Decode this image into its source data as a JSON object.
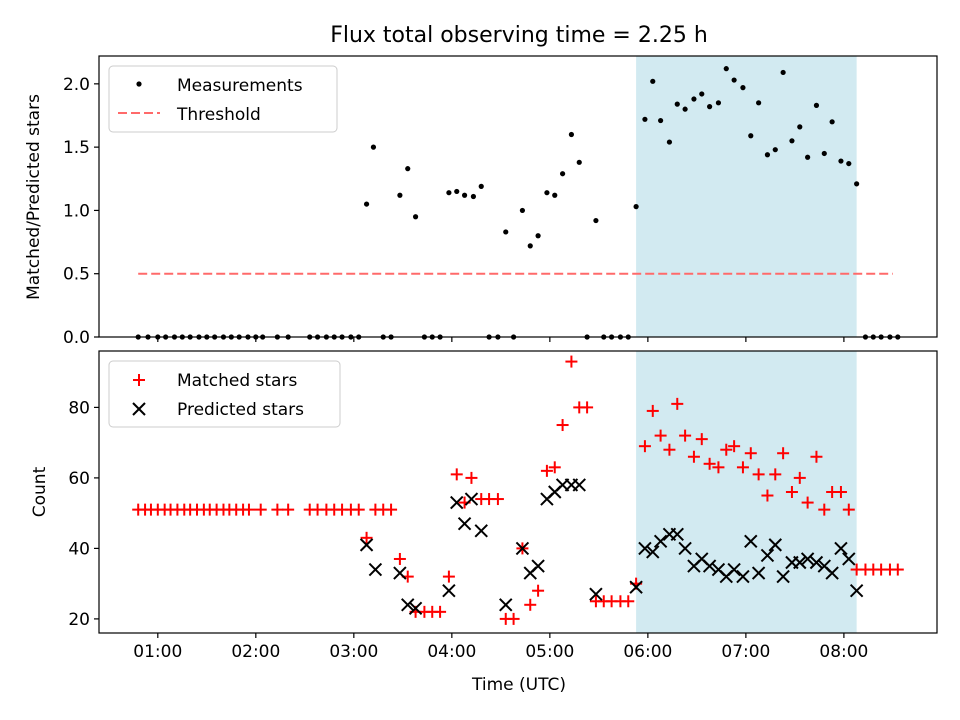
{
  "title": "Flux total observing time = 2.25 h",
  "colors": {
    "background": "#ffffff",
    "highlight": "#add8e6",
    "threshold": "#ff6a6a",
    "matched": "#ff0000",
    "predicted": "#000000",
    "measurement": "#000000"
  },
  "chart_data": [
    {
      "type": "scatter",
      "ylabel": "Matched/Predicted stars",
      "xlim": [
        0.4,
        8.95
      ],
      "ylim": [
        0,
        2.22
      ],
      "yticks": [
        0,
        0.5,
        1.0,
        1.5,
        2.0
      ],
      "ytick_labels": [
        "0.0",
        "0.5",
        "1.0",
        "1.5",
        "2.0"
      ],
      "highlight_span": [
        5.88,
        8.13
      ],
      "threshold": {
        "name": "Threshold",
        "y": 0.5,
        "x_range": [
          0.8,
          8.5
        ]
      },
      "legend": [
        "Measurements",
        "Threshold"
      ],
      "legend_position": "upper-left",
      "series": [
        {
          "name": "Measurements",
          "x": [
            0.8,
            0.9,
            1.0,
            1.08,
            1.17,
            1.25,
            1.33,
            1.42,
            1.5,
            1.58,
            1.67,
            1.75,
            1.83,
            1.92,
            2.0,
            2.07,
            2.22,
            2.33,
            2.55,
            2.63,
            2.72,
            2.8,
            2.88,
            2.97,
            3.05,
            3.13,
            3.2,
            3.3,
            3.38,
            3.47,
            3.55,
            3.63,
            3.72,
            3.8,
            3.88,
            3.97,
            4.05,
            4.13,
            4.22,
            4.3,
            4.38,
            4.47,
            4.55,
            4.63,
            4.72,
            4.8,
            4.88,
            4.97,
            5.05,
            5.13,
            5.22,
            5.3,
            5.38,
            5.47,
            5.55,
            5.63,
            5.72,
            5.8,
            5.88,
            5.97,
            6.05,
            6.13,
            6.22,
            6.3,
            6.38,
            6.47,
            6.55,
            6.63,
            6.72,
            6.8,
            6.88,
            6.97,
            7.05,
            7.13,
            7.22,
            7.3,
            7.38,
            7.47,
            7.55,
            7.63,
            7.72,
            7.8,
            7.88,
            7.97,
            8.05,
            8.13,
            8.22,
            8.3,
            8.38,
            8.47,
            8.55
          ],
          "y": [
            0,
            0,
            0,
            0,
            0,
            0,
            0,
            0,
            0,
            0,
            0,
            0,
            0,
            0,
            0,
            0,
            0,
            0,
            0,
            0,
            0,
            0,
            0,
            0,
            0,
            1.05,
            1.5,
            0,
            0,
            1.12,
            1.33,
            0.95,
            0,
            0,
            0,
            1.14,
            1.15,
            1.12,
            1.11,
            1.19,
            0,
            0,
            0.83,
            0,
            1.0,
            0.72,
            0.8,
            1.14,
            1.12,
            1.29,
            1.6,
            1.38,
            0,
            0.92,
            0,
            0,
            0,
            0,
            1.03,
            1.72,
            2.02,
            1.71,
            1.54,
            1.84,
            1.8,
            1.88,
            1.92,
            1.82,
            1.85,
            2.12,
            2.03,
            1.97,
            1.59,
            1.85,
            1.44,
            1.48,
            2.09,
            1.55,
            1.66,
            1.42,
            1.83,
            1.45,
            1.7,
            1.39,
            1.37,
            1.21,
            0,
            0,
            0,
            0,
            0
          ]
        }
      ]
    },
    {
      "type": "scatter",
      "ylabel": "Count",
      "xlabel": "Time (UTC)",
      "xlim": [
        0.4,
        8.95
      ],
      "ylim": [
        16,
        96
      ],
      "yticks": [
        20,
        40,
        60,
        80
      ],
      "ytick_labels": [
        "20",
        "40",
        "60",
        "80"
      ],
      "xticks": [
        1,
        2,
        3,
        4,
        5,
        6,
        7,
        8
      ],
      "xtick_labels": [
        "01:00",
        "02:00",
        "03:00",
        "04:00",
        "05:00",
        "06:00",
        "07:00",
        "08:00"
      ],
      "highlight_span": [
        5.88,
        8.13
      ],
      "legend": [
        "Matched stars",
        "Predicted stars"
      ],
      "legend_position": "upper-left",
      "series": [
        {
          "name": "Matched stars",
          "marker": "+",
          "x": [
            0.8,
            0.87,
            0.93,
            1.0,
            1.07,
            1.13,
            1.2,
            1.27,
            1.33,
            1.4,
            1.47,
            1.53,
            1.6,
            1.67,
            1.73,
            1.8,
            1.87,
            1.93,
            2.05,
            2.22,
            2.33,
            2.55,
            2.63,
            2.72,
            2.8,
            2.88,
            2.97,
            3.05,
            3.13,
            3.22,
            3.3,
            3.38,
            3.47,
            3.55,
            3.63,
            3.72,
            3.8,
            3.88,
            3.97,
            4.05,
            4.13,
            4.2,
            4.3,
            4.38,
            4.47,
            4.55,
            4.63,
            4.72,
            4.8,
            4.88,
            4.97,
            5.05,
            5.13,
            5.22,
            5.3,
            5.38,
            5.47,
            5.55,
            5.63,
            5.72,
            5.8,
            5.88,
            5.97,
            6.05,
            6.13,
            6.22,
            6.3,
            6.38,
            6.47,
            6.55,
            6.63,
            6.72,
            6.8,
            6.88,
            6.97,
            7.05,
            7.13,
            7.22,
            7.3,
            7.38,
            7.47,
            7.55,
            7.63,
            7.72,
            7.8,
            7.88,
            7.97,
            8.05,
            8.13,
            8.22,
            8.3,
            8.38,
            8.47,
            8.55
          ],
          "y": [
            51,
            51,
            51,
            51,
            51,
            51,
            51,
            51,
            51,
            51,
            51,
            51,
            51,
            51,
            51,
            51,
            51,
            51,
            51,
            51,
            51,
            51,
            51,
            51,
            51,
            51,
            51,
            51,
            43,
            51,
            51,
            51,
            37,
            32,
            22,
            22,
            22,
            22,
            32,
            61,
            53,
            60,
            54,
            54,
            54,
            20,
            20,
            40,
            24,
            28,
            62,
            63,
            75,
            93,
            80,
            80,
            25,
            25,
            25,
            25,
            25,
            30,
            69,
            79,
            72,
            68,
            81,
            72,
            66,
            71,
            64,
            63,
            68,
            69,
            63,
            67,
            61,
            55,
            61,
            67,
            56,
            60,
            53,
            66,
            51,
            56,
            56,
            51,
            34,
            34,
            34,
            34,
            34,
            34
          ]
        },
        {
          "name": "Predicted stars",
          "marker": "x",
          "x": [
            3.13,
            3.22,
            3.47,
            3.55,
            3.63,
            3.97,
            4.05,
            4.13,
            4.2,
            4.3,
            4.55,
            4.72,
            4.8,
            4.88,
            4.97,
            5.05,
            5.13,
            5.22,
            5.3,
            5.47,
            5.88,
            5.97,
            6.05,
            6.13,
            6.22,
            6.3,
            6.38,
            6.47,
            6.55,
            6.63,
            6.72,
            6.8,
            6.88,
            6.97,
            7.05,
            7.13,
            7.22,
            7.3,
            7.38,
            7.47,
            7.55,
            7.63,
            7.72,
            7.8,
            7.88,
            7.97,
            8.05,
            8.13
          ],
          "y": [
            41,
            34,
            33,
            24,
            23,
            28,
            53,
            47,
            54,
            45,
            24,
            40,
            33,
            35,
            54,
            56,
            58,
            58,
            58,
            27,
            29,
            40,
            39,
            42,
            44,
            44,
            40,
            35,
            37,
            35,
            34,
            32,
            34,
            32,
            42,
            33,
            38,
            41,
            32,
            36,
            36,
            37,
            36,
            35,
            33,
            40,
            37,
            28
          ]
        }
      ]
    }
  ]
}
